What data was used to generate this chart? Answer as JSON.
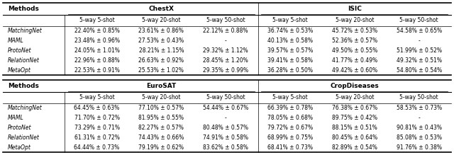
{
  "figsize": [
    6.4,
    2.19
  ],
  "dpi": 100,
  "top_table": {
    "dataset1": "ChestX",
    "dataset2": "ISIC",
    "subheader": [
      "5-way 5-shot",
      "5-way 20-shot",
      "5-way 50-shot",
      "5-way 5-shot",
      "5-way 20-shot",
      "5-way 50-shot"
    ],
    "rows": [
      [
        "MatchingNet",
        "22.40% ± 0.85%",
        "23.61% ± 0.86%",
        "22.12% ± 0.88%",
        "36.74% ± 0.53%",
        "45.72% ± 0.53%",
        "54.58% ± 0.65%"
      ],
      [
        "MAML",
        "23.48% ± 0.96%",
        "27.53% ± 0.43%",
        "-",
        "40.13% ± 0.58%",
        "52.36% ± 0.57%",
        "-"
      ],
      [
        "ProtoNet",
        "24.05% ± 1.01%",
        "28.21% ± 1.15%",
        "29.32% ± 1.12%",
        "39.57% ± 0.57%",
        "49.50% ± 0.55%",
        "51.99% ± 0.52%"
      ],
      [
        "RelationNet",
        "22.96% ± 0.88%",
        "26.63% ± 0.92%",
        "28.45% ± 1.20%",
        "39.41% ± 0.58%",
        "41.77% ± 0.49%",
        "49.32% ± 0.51%"
      ],
      [
        "MetaOpt",
        "22.53% ± 0.91%",
        "25.53% ± 1.02%",
        "29.35% ± 0.99%",
        "36.28% ± 0.50%",
        "49.42% ± 0.60%",
        "54.80% ± 0.54%"
      ]
    ]
  },
  "bottom_table": {
    "dataset1": "EuroSAT",
    "dataset2": "CropDiseases",
    "subheader": [
      "5-way 5-shot",
      "5-way 20-shot",
      "5-way 50-shot",
      "5-way 5-shot",
      "5-way 20-shot",
      "5-way 50-shot"
    ],
    "rows": [
      [
        "MatchingNet",
        "64.45% ± 0.63%",
        "77.10% ± 0.57%",
        "54.44% ± 0.67%",
        "66.39% ± 0.78%",
        "76.38% ± 0.67%",
        "58.53% ± 0.73%"
      ],
      [
        "MAML",
        "71.70% ± 0.72%",
        "81.95% ± 0.55%",
        "-",
        "78.05% ± 0.68%",
        "89.75% ± 0.42%",
        "-"
      ],
      [
        "ProtoNet",
        "73.29% ± 0.71%",
        "82.27% ± 0.57%",
        "80.48% ± 0.57%",
        "79.72% ± 0.67%",
        "88.15% ± 0.51%",
        "90.81% ± 0.43%"
      ],
      [
        "RelationNet",
        "61.31% ± 0.72%",
        "74.43% ± 0.66%",
        "74.91% ± 0.58%",
        "68.99% ± 0.75%",
        "80.45% ± 0.64%",
        "85.08% ± 0.53%"
      ],
      [
        "MetaOpt",
        "64.44% ± 0.73%",
        "79.19% ± 0.62%",
        "83.62% ± 0.58%",
        "68.41% ± 0.73%",
        "82.89% ± 0.54%",
        "91.76% ± 0.38%"
      ]
    ]
  },
  "background_color": "#ffffff",
  "line_color": "#000000",
  "text_color": "#000000",
  "font_size_header": 6.5,
  "font_size_subheader": 5.5,
  "font_size_data": 5.5,
  "font_size_method": 5.5
}
